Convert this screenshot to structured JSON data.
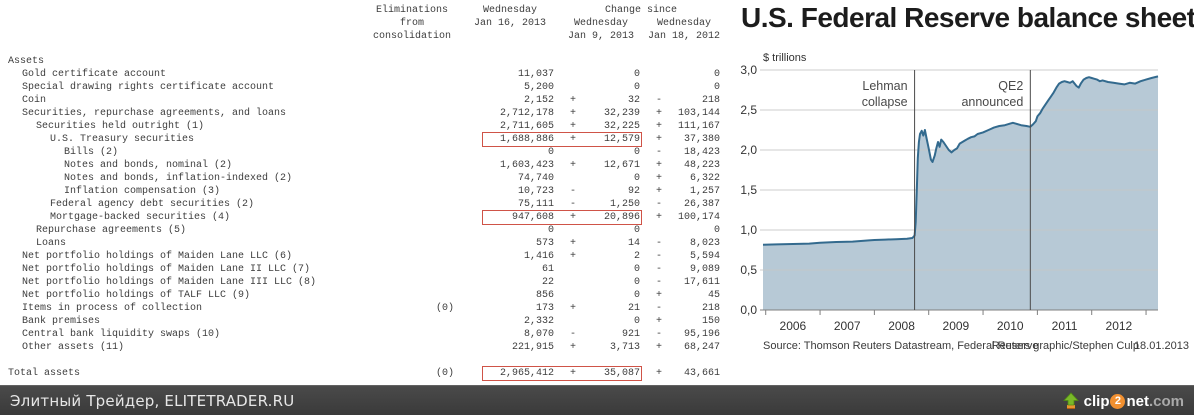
{
  "table": {
    "header": {
      "elim": [
        "Eliminations",
        "from",
        "consolidation"
      ],
      "col_date": [
        "Wednesday",
        "Jan 16, 2013"
      ],
      "change_since": "Change since",
      "chg1": [
        "Wednesday",
        "Jan 9, 2013"
      ],
      "chg2": [
        "Wednesday",
        "Jan 18, 2012"
      ]
    },
    "rows": [
      {
        "label": "Assets",
        "indent": 0
      },
      {
        "label": "Gold certificate account",
        "indent": 1,
        "v1": "11,037",
        "c1": "0",
        "c2": "0"
      },
      {
        "label": "Special drawing rights certificate account",
        "indent": 1,
        "v1": "5,200",
        "c1": "0",
        "c2": "0"
      },
      {
        "label": "Coin",
        "indent": 1,
        "v1": "2,152",
        "s1": "+",
        "c1": "32",
        "s2": "-",
        "c2": "218"
      },
      {
        "label": "Securities, repurchase agreements, and loans",
        "indent": 1,
        "v1": "2,712,178",
        "s1": "+",
        "c1": "32,239",
        "s2": "+",
        "c2": "103,144"
      },
      {
        "label": "Securities held outright (1)",
        "indent": 2,
        "v1": "2,711,605",
        "s1": "+",
        "c1": "32,225",
        "s2": "+",
        "c2": "111,167"
      },
      {
        "label": "U.S. Treasury securities",
        "indent": 3,
        "v1": "1,688,886",
        "s1": "+",
        "c1": "12,579",
        "s2": "+",
        "c2": "37,380",
        "hl": true
      },
      {
        "label": "Bills (2)",
        "indent": 4,
        "v1": "0",
        "c1": "0",
        "s2": "-",
        "c2": "18,423"
      },
      {
        "label": "Notes and bonds, nominal (2)",
        "indent": 4,
        "v1": "1,603,423",
        "s1": "+",
        "c1": "12,671",
        "s2": "+",
        "c2": "48,223"
      },
      {
        "label": "Notes and bonds, inflation-indexed (2)",
        "indent": 4,
        "v1": "74,740",
        "c1": "0",
        "s2": "+",
        "c2": "6,322"
      },
      {
        "label": "Inflation compensation (3)",
        "indent": 4,
        "v1": "10,723",
        "s1": "-",
        "c1": "92",
        "s2": "+",
        "c2": "1,257"
      },
      {
        "label": "Federal agency debt securities (2)",
        "indent": 3,
        "v1": "75,111",
        "s1": "-",
        "c1": "1,250",
        "s2": "-",
        "c2": "26,387"
      },
      {
        "label": "Mortgage-backed securities (4)",
        "indent": 3,
        "v1": "947,608",
        "s1": "+",
        "c1": "20,896",
        "s2": "+",
        "c2": "100,174",
        "hl": true
      },
      {
        "label": "Repurchase agreements (5)",
        "indent": 2,
        "v1": "0",
        "c1": "0",
        "c2": "0"
      },
      {
        "label": "Loans",
        "indent": 2,
        "v1": "573",
        "s1": "+",
        "c1": "14",
        "s2": "-",
        "c2": "8,023"
      },
      {
        "label": "Net portfolio holdings of Maiden Lane LLC (6)",
        "indent": 1,
        "v1": "1,416",
        "s1": "+",
        "c1": "2",
        "s2": "-",
        "c2": "5,594"
      },
      {
        "label": "Net portfolio holdings of Maiden Lane II LLC (7)",
        "indent": 1,
        "v1": "61",
        "c1": "0",
        "s2": "-",
        "c2": "9,089"
      },
      {
        "label": "Net portfolio holdings of Maiden Lane III LLC (8)",
        "indent": 1,
        "v1": "22",
        "c1": "0",
        "s2": "-",
        "c2": "17,611"
      },
      {
        "label": "Net portfolio holdings of TALF LLC (9)",
        "indent": 1,
        "v1": "856",
        "c1": "0",
        "s2": "+",
        "c2": "45"
      },
      {
        "label": "Items in process of collection",
        "indent": 1,
        "elim": "(0)",
        "v1": "173",
        "s1": "+",
        "c1": "21",
        "s2": "-",
        "c2": "218"
      },
      {
        "label": "Bank premises",
        "indent": 1,
        "v1": "2,332",
        "c1": "0",
        "s2": "+",
        "c2": "150"
      },
      {
        "label": "Central bank liquidity swaps (10)",
        "indent": 1,
        "v1": "8,070",
        "s1": "-",
        "c1": "921",
        "s2": "-",
        "c2": "95,196"
      },
      {
        "label": "Other assets (11)",
        "indent": 1,
        "v1": "221,915",
        "s1": "+",
        "c1": "3,713",
        "s2": "+",
        "c2": "68,247"
      },
      {
        "label": "Total assets",
        "indent": 0,
        "elim": "(0)",
        "v1": "2,965,412",
        "s1": "+",
        "c1": "35,087",
        "s2": "+",
        "c2": "43,661",
        "hl": true,
        "gap": true
      }
    ]
  },
  "chart_data": {
    "type": "area",
    "title": "U.S. Federal Reserve balance sheet",
    "ylabel": "$ trillions",
    "source": "Source: Thomson Reuters Datastream, Federal Reserve",
    "credit": "Reuters graphic/Stephen Culp",
    "date": "18.01.2013",
    "xlim": [
      2005.95,
      2013.22
    ],
    "ylim": [
      0,
      3.0
    ],
    "x_tick_years": [
      2006,
      2007,
      2008,
      2009,
      2010,
      2011,
      2012,
      2013
    ],
    "x_labels": [
      "2006",
      "2007",
      "2008",
      "2009",
      "2010",
      "2011",
      "2012"
    ],
    "y_ticks": [
      0,
      0.5,
      1.0,
      1.5,
      2.0,
      2.5,
      3.0
    ],
    "y_tick_labels": [
      "0,0",
      "0,5",
      "1,0",
      "1,5",
      "2,0",
      "2,5",
      "3,0"
    ],
    "grid": true,
    "annotations": [
      {
        "x": 2008.74,
        "label_lines": [
          "Lehman",
          "collapse"
        ]
      },
      {
        "x": 2010.87,
        "label_lines": [
          "QE2",
          "announced"
        ]
      }
    ],
    "series": [
      {
        "name": "Fed total assets ($ trillions)",
        "points": [
          [
            2005.95,
            0.815
          ],
          [
            2006.2,
            0.82
          ],
          [
            2006.5,
            0.825
          ],
          [
            2006.8,
            0.83
          ],
          [
            2007.0,
            0.84
          ],
          [
            2007.3,
            0.85
          ],
          [
            2007.6,
            0.855
          ],
          [
            2007.9,
            0.87
          ],
          [
            2008.0,
            0.875
          ],
          [
            2008.2,
            0.88
          ],
          [
            2008.4,
            0.885
          ],
          [
            2008.6,
            0.89
          ],
          [
            2008.7,
            0.9
          ],
          [
            2008.74,
            0.93
          ],
          [
            2008.76,
            1.1
          ],
          [
            2008.78,
            1.5
          ],
          [
            2008.8,
            1.9
          ],
          [
            2008.82,
            2.1
          ],
          [
            2008.84,
            2.2
          ],
          [
            2008.87,
            2.24
          ],
          [
            2008.9,
            2.18
          ],
          [
            2008.93,
            2.25
          ],
          [
            2008.96,
            2.15
          ],
          [
            2009.0,
            2.02
          ],
          [
            2009.04,
            1.88
          ],
          [
            2009.07,
            1.85
          ],
          [
            2009.11,
            1.93
          ],
          [
            2009.14,
            2.02
          ],
          [
            2009.17,
            2.1
          ],
          [
            2009.2,
            2.04
          ],
          [
            2009.23,
            2.13
          ],
          [
            2009.27,
            2.1
          ],
          [
            2009.32,
            2.05
          ],
          [
            2009.37,
            2.0
          ],
          [
            2009.42,
            1.97
          ],
          [
            2009.47,
            2.0
          ],
          [
            2009.52,
            2.02
          ],
          [
            2009.57,
            2.08
          ],
          [
            2009.62,
            2.1
          ],
          [
            2009.67,
            2.12
          ],
          [
            2009.72,
            2.14
          ],
          [
            2009.78,
            2.16
          ],
          [
            2009.84,
            2.17
          ],
          [
            2009.9,
            2.2
          ],
          [
            2010.0,
            2.22
          ],
          [
            2010.1,
            2.25
          ],
          [
            2010.2,
            2.28
          ],
          [
            2010.3,
            2.3
          ],
          [
            2010.4,
            2.31
          ],
          [
            2010.5,
            2.33
          ],
          [
            2010.55,
            2.34
          ],
          [
            2010.6,
            2.33
          ],
          [
            2010.7,
            2.31
          ],
          [
            2010.8,
            2.3
          ],
          [
            2010.87,
            2.29
          ],
          [
            2010.92,
            2.32
          ],
          [
            2010.97,
            2.36
          ],
          [
            2011.0,
            2.42
          ],
          [
            2011.05,
            2.46
          ],
          [
            2011.1,
            2.52
          ],
          [
            2011.15,
            2.57
          ],
          [
            2011.2,
            2.62
          ],
          [
            2011.25,
            2.67
          ],
          [
            2011.3,
            2.72
          ],
          [
            2011.35,
            2.78
          ],
          [
            2011.4,
            2.83
          ],
          [
            2011.45,
            2.85
          ],
          [
            2011.5,
            2.86
          ],
          [
            2011.55,
            2.85
          ],
          [
            2011.6,
            2.84
          ],
          [
            2011.65,
            2.86
          ],
          [
            2011.72,
            2.8
          ],
          [
            2011.76,
            2.78
          ],
          [
            2011.8,
            2.83
          ],
          [
            2011.85,
            2.88
          ],
          [
            2011.9,
            2.9
          ],
          [
            2011.95,
            2.91
          ],
          [
            2012.0,
            2.9
          ],
          [
            2012.05,
            2.89
          ],
          [
            2012.1,
            2.88
          ],
          [
            2012.15,
            2.86
          ],
          [
            2012.2,
            2.87
          ],
          [
            2012.3,
            2.85
          ],
          [
            2012.4,
            2.84
          ],
          [
            2012.5,
            2.83
          ],
          [
            2012.6,
            2.82
          ],
          [
            2012.7,
            2.84
          ],
          [
            2012.8,
            2.83
          ],
          [
            2012.9,
            2.86
          ],
          [
            2013.0,
            2.88
          ],
          [
            2013.1,
            2.9
          ],
          [
            2013.22,
            2.92
          ]
        ]
      }
    ],
    "colors": {
      "line": "#336a8e",
      "fill": "#b7c9d6",
      "grid": "#c6c6c6",
      "axis": "#7f7f7f",
      "event_line": "#4a4a4a",
      "text": "#333333"
    }
  },
  "footer": {
    "brand": "Элитный Трейдер, ELITETRADER.RU",
    "logo": {
      "clip": "clip",
      "two": "2",
      "net": "net",
      "com": ".com"
    }
  },
  "colors": {
    "highlight_box": "#cf5347",
    "footer_bg": "#3e3e3e"
  }
}
